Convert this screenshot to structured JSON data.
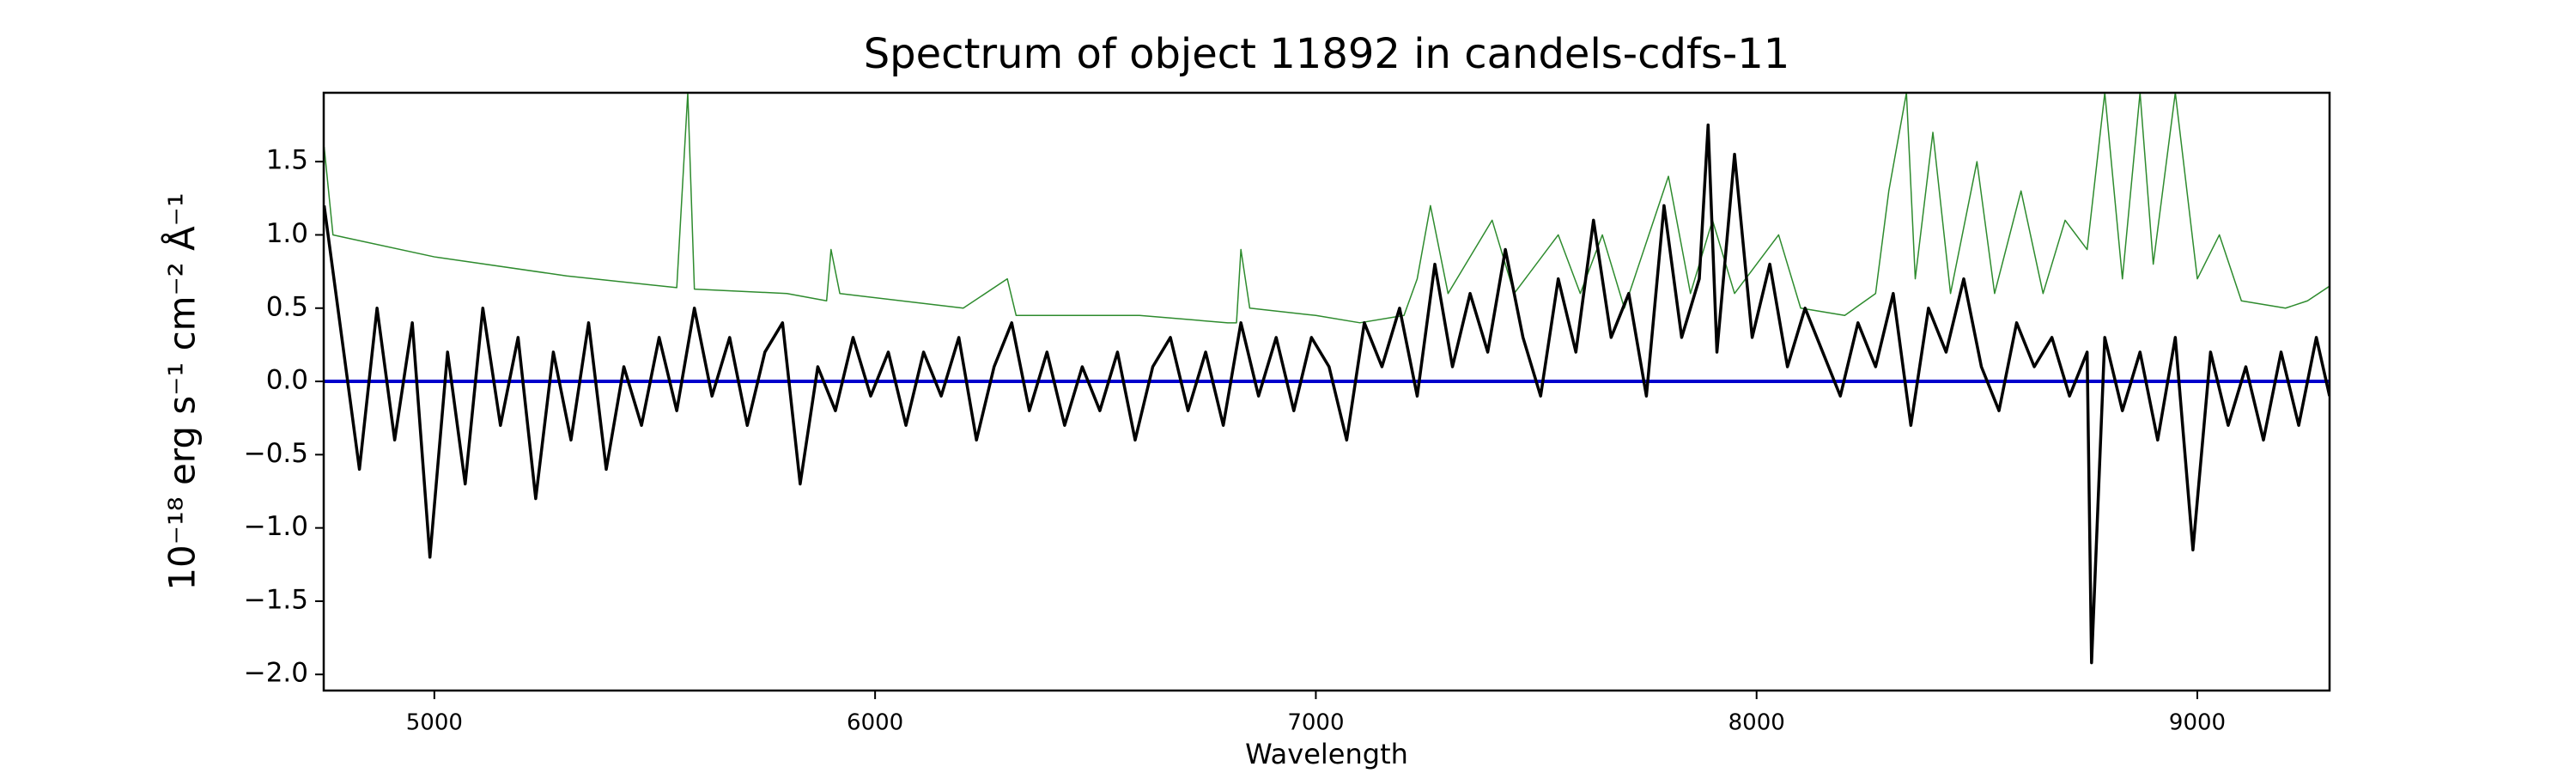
{
  "chart_data": {
    "type": "line",
    "title": "Spectrum of object 11892 in candels-cdfs-11",
    "xlabel": "Wavelength",
    "ylabel": "10⁻¹⁸ erg s⁻¹ cm⁻² Å⁻¹",
    "xlim": [
      4749,
      9300
    ],
    "ylim": [
      -2.11,
      1.97
    ],
    "xticks": [
      5000,
      6000,
      7000,
      8000,
      9000
    ],
    "yticks": [
      {
        "value": -2,
        "label": "−2.0"
      },
      {
        "value": -1.5,
        "label": "−1.5"
      },
      {
        "value": -1,
        "label": "−1.0"
      },
      {
        "value": -0.5,
        "label": "−0.5"
      },
      {
        "value": 0,
        "label": "0.0"
      },
      0.5,
      {
        "value": 1,
        "label": "1.0"
      },
      1.5
    ],
    "grid": false,
    "series": [
      {
        "color": "#2e8b2e",
        "width": 1.5,
        "x": [
          4750,
          4770,
          4800,
          5000,
          5300,
          5550,
          5575,
          5590,
          5800,
          5890,
          5900,
          5920,
          6200,
          6300,
          6320,
          6600,
          6800,
          6820,
          6830,
          6850,
          7000,
          7100,
          7200,
          7230,
          7260,
          7300,
          7400,
          7450,
          7550,
          7600,
          7650,
          7700,
          7800,
          7850,
          7900,
          7950,
          8050,
          8100,
          8200,
          8270,
          8300,
          8340,
          8360,
          8400,
          8440,
          8500,
          8540,
          8600,
          8650,
          8700,
          8750,
          8790,
          8830,
          8870,
          8900,
          8950,
          9000,
          9050,
          9100,
          9200,
          9250,
          9300
        ],
        "values": [
          1.6,
          1.0,
          0.98,
          0.85,
          0.72,
          0.64,
          1.97,
          0.63,
          0.6,
          0.55,
          0.9,
          0.6,
          0.5,
          0.7,
          0.45,
          0.45,
          0.4,
          0.4,
          0.9,
          0.5,
          0.45,
          0.4,
          0.45,
          0.7,
          1.2,
          0.6,
          1.1,
          0.6,
          1.0,
          0.6,
          1.0,
          0.5,
          1.4,
          0.6,
          1.1,
          0.6,
          1.0,
          0.5,
          0.45,
          0.6,
          1.3,
          1.97,
          0.7,
          1.7,
          0.6,
          1.5,
          0.6,
          1.3,
          0.6,
          1.1,
          0.9,
          1.97,
          0.7,
          1.97,
          0.8,
          1.97,
          0.7,
          1.0,
          0.55,
          0.5,
          0.55,
          0.65
        ]
      },
      {
        "color": "#0000cc",
        "width": 4,
        "x": [
          4750,
          9300
        ],
        "values": [
          0,
          0
        ]
      },
      {
        "color": "#000000",
        "width": 3.5,
        "x": [
          4750,
          4790,
          4830,
          4870,
          4910,
          4950,
          4990,
          5030,
          5070,
          5110,
          5150,
          5190,
          5230,
          5270,
          5310,
          5350,
          5390,
          5430,
          5470,
          5510,
          5550,
          5590,
          5630,
          5670,
          5710,
          5750,
          5790,
          5830,
          5870,
          5910,
          5950,
          5990,
          6030,
          6070,
          6110,
          6150,
          6190,
          6230,
          6270,
          6310,
          6350,
          6390,
          6430,
          6470,
          6510,
          6550,
          6590,
          6630,
          6670,
          6710,
          6750,
          6790,
          6830,
          6870,
          6910,
          6950,
          6990,
          7030,
          7070,
          7110,
          7150,
          7190,
          7230,
          7270,
          7310,
          7350,
          7390,
          7430,
          7470,
          7510,
          7550,
          7590,
          7630,
          7670,
          7710,
          7750,
          7790,
          7830,
          7870,
          7890,
          7910,
          7950,
          7990,
          8030,
          8070,
          8110,
          8150,
          8190,
          8230,
          8270,
          8310,
          8350,
          8390,
          8430,
          8470,
          8510,
          8550,
          8590,
          8630,
          8670,
          8710,
          8750,
          8760,
          8790,
          8830,
          8870,
          8910,
          8950,
          8990,
          9030,
          9070,
          9110,
          9150,
          9190,
          9230,
          9270,
          9300
        ],
        "values": [
          1.2,
          0.3,
          -0.6,
          0.5,
          -0.4,
          0.4,
          -1.2,
          0.2,
          -0.7,
          0.5,
          -0.3,
          0.3,
          -0.8,
          0.2,
          -0.4,
          0.4,
          -0.6,
          0.1,
          -0.3,
          0.3,
          -0.2,
          0.5,
          -0.1,
          0.3,
          -0.3,
          0.2,
          0.4,
          -0.7,
          0.1,
          -0.2,
          0.3,
          -0.1,
          0.2,
          -0.3,
          0.2,
          -0.1,
          0.3,
          -0.4,
          0.1,
          0.4,
          -0.2,
          0.2,
          -0.3,
          0.1,
          -0.2,
          0.2,
          -0.4,
          0.1,
          0.3,
          -0.2,
          0.2,
          -0.3,
          0.4,
          -0.1,
          0.3,
          -0.2,
          0.3,
          0.1,
          -0.4,
          0.4,
          0.1,
          0.5,
          -0.1,
          0.8,
          0.1,
          0.6,
          0.2,
          0.9,
          0.3,
          -0.1,
          0.7,
          0.2,
          1.1,
          0.3,
          0.6,
          -0.1,
          1.2,
          0.3,
          0.7,
          1.75,
          0.2,
          1.55,
          0.3,
          0.8,
          0.1,
          0.5,
          0.2,
          -0.1,
          0.4,
          0.1,
          0.6,
          -0.3,
          0.5,
          0.2,
          0.7,
          0.1,
          -0.2,
          0.4,
          0.1,
          0.3,
          -0.1,
          0.2,
          -1.92,
          0.3,
          -0.2,
          0.2,
          -0.4,
          0.3,
          -1.15,
          0.2,
          -0.3,
          0.1,
          -0.4,
          0.2,
          -0.3,
          0.3,
          -0.1
        ]
      }
    ]
  }
}
